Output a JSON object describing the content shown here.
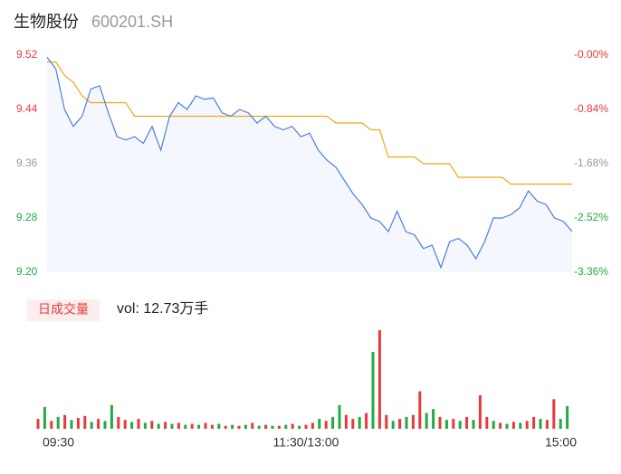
{
  "chart_data": [
    {
      "type": "line",
      "title": "生物股份",
      "subtitle": "600201.SH",
      "x": [
        0,
        4,
        8,
        12,
        16,
        20,
        24,
        28,
        32,
        36,
        40,
        44,
        48,
        52,
        56,
        60,
        64,
        68,
        72,
        76,
        80,
        84,
        88,
        92,
        96,
        100,
        104,
        108,
        112,
        116,
        120,
        124,
        128,
        132,
        136,
        140,
        144,
        148,
        152,
        156,
        160,
        164,
        168,
        172,
        176,
        180,
        184,
        188,
        192,
        196,
        200,
        204,
        208,
        212,
        216,
        220,
        224,
        228,
        232,
        236,
        240
      ],
      "xlim": [
        0,
        240
      ],
      "ylim": [
        9.2,
        9.52
      ],
      "yticks": [
        {
          "value": 9.52,
          "label": "9.52"
        },
        9.44,
        9.36,
        9.28,
        {
          "value": 9.2,
          "label": "9.20"
        }
      ],
      "ytick_colors": [
        "#e83a3a",
        "#e83a3a",
        "#999999",
        "#22aa44",
        "#22aa44"
      ],
      "y2lim": [
        -3.36,
        0
      ],
      "y2ticks": [
        {
          "value": 0,
          "label": "-0.00%"
        },
        {
          "value": -0.84,
          "label": "-0.84%"
        },
        {
          "value": -1.68,
          "label": "-1.68%"
        },
        {
          "value": -2.52,
          "label": "-2.52%"
        },
        {
          "value": -3.36,
          "label": "-3.36%"
        }
      ],
      "y2tick_colors": [
        "#e83a3a",
        "#e83a3a",
        "#999999",
        "#22aa44",
        "#22aa44"
      ],
      "series": [
        {
          "color": "#4a7fe0",
          "values": [
            9.517,
            9.5,
            9.44,
            9.415,
            9.43,
            9.47,
            9.475,
            9.435,
            9.4,
            9.395,
            9.4,
            9.39,
            9.415,
            9.38,
            9.43,
            9.45,
            9.44,
            9.46,
            9.455,
            9.457,
            9.435,
            9.43,
            9.44,
            9.435,
            9.42,
            9.43,
            9.415,
            9.41,
            9.415,
            9.4,
            9.405,
            9.38,
            9.365,
            9.355,
            9.335,
            9.315,
            9.3,
            9.28,
            9.275,
            9.26,
            9.29,
            9.26,
            9.255,
            9.235,
            9.24,
            9.207,
            9.245,
            9.25,
            9.24,
            9.22,
            9.245,
            9.28,
            9.28,
            9.285,
            9.295,
            9.32,
            9.305,
            9.3,
            9.28,
            9.275,
            9.26
          ]
        },
        {
          "color": "#f0a818",
          "values": [
            9.51,
            9.51,
            9.49,
            9.48,
            9.46,
            9.45,
            9.45,
            9.45,
            9.45,
            9.45,
            9.43,
            9.43,
            9.43,
            9.43,
            9.43,
            9.43,
            9.43,
            9.43,
            9.43,
            9.43,
            9.43,
            9.43,
            9.43,
            9.43,
            9.43,
            9.43,
            9.43,
            9.43,
            9.43,
            9.43,
            9.43,
            9.43,
            9.43,
            9.42,
            9.42,
            9.42,
            9.42,
            9.41,
            9.41,
            9.37,
            9.37,
            9.37,
            9.37,
            9.36,
            9.36,
            9.36,
            9.36,
            9.34,
            9.34,
            9.34,
            9.34,
            9.34,
            9.34,
            9.33,
            9.33,
            9.33,
            9.33,
            9.33,
            9.33,
            9.33,
            9.33
          ]
        }
      ],
      "area_color": "#f4f7fd"
    },
    {
      "type": "bar",
      "title": "日成交量",
      "subtitle": "vol: 12.73万手",
      "x": [
        0,
        3,
        6,
        9,
        12,
        15,
        18,
        21,
        24,
        27,
        30,
        33,
        36,
        39,
        42,
        45,
        48,
        51,
        54,
        57,
        60,
        63,
        66,
        69,
        72,
        75,
        78,
        81,
        84,
        87,
        90,
        93,
        96,
        99,
        102,
        105,
        108,
        111,
        114,
        117,
        120,
        123,
        126,
        129,
        132,
        135,
        138,
        141,
        144,
        147,
        150,
        153,
        156,
        159,
        162,
        165,
        168,
        171,
        174,
        177,
        180,
        183,
        186,
        189,
        192,
        195,
        198,
        201,
        204,
        207,
        210,
        213,
        216,
        219,
        222,
        225,
        228,
        231,
        234,
        237
      ],
      "xlim": [
        0,
        240
      ],
      "xticks": [
        {
          "value": 0,
          "label": "09:30"
        },
        {
          "value": 120,
          "label": "11:30/13:00"
        },
        {
          "value": 240,
          "label": "15:00"
        }
      ],
      "ylim": [
        0,
        100
      ],
      "values": [
        10,
        22,
        8,
        12,
        14,
        9,
        11,
        13,
        7,
        10,
        8,
        24,
        12,
        9,
        7,
        10,
        6,
        8,
        5,
        7,
        5,
        6,
        4,
        5,
        4,
        6,
        4,
        5,
        3,
        4,
        3,
        4,
        6,
        3,
        4,
        3,
        3,
        4,
        5,
        3,
        4,
        6,
        10,
        8,
        12,
        24,
        14,
        10,
        12,
        16,
        78,
        100,
        14,
        8,
        10,
        12,
        14,
        38,
        16,
        20,
        12,
        9,
        10,
        8,
        12,
        9,
        34,
        12,
        8,
        6,
        5,
        7,
        6,
        8,
        12,
        10,
        9,
        30,
        10,
        23
      ],
      "colors": [
        "#e83a3a",
        "#22aa44",
        "#e83a3a",
        "#22aa44",
        "#e83a3a",
        "#22aa44",
        "#e83a3a",
        "#e83a3a",
        "#22aa44",
        "#e83a3a",
        "#22aa44",
        "#22aa44",
        "#e83a3a",
        "#e83a3a",
        "#22aa44",
        "#e83a3a",
        "#22aa44",
        "#e83a3a",
        "#22aa44",
        "#e83a3a",
        "#22aa44",
        "#e83a3a",
        "#22aa44",
        "#e83a3a",
        "#22aa44",
        "#e83a3a",
        "#e83a3a",
        "#22aa44",
        "#e83a3a",
        "#22aa44",
        "#e83a3a",
        "#22aa44",
        "#e83a3a",
        "#22aa44",
        "#e83a3a",
        "#22aa44",
        "#e83a3a",
        "#22aa44",
        "#e83a3a",
        "#22aa44",
        "#e83a3a",
        "#e83a3a",
        "#22aa44",
        "#e83a3a",
        "#22aa44",
        "#22aa44",
        "#e83a3a",
        "#e83a3a",
        "#22aa44",
        "#e83a3a",
        "#22aa44",
        "#e83a3a",
        "#e83a3a",
        "#22aa44",
        "#e83a3a",
        "#22aa44",
        "#e83a3a",
        "#e83a3a",
        "#22aa44",
        "#22aa44",
        "#e83a3a",
        "#22aa44",
        "#e83a3a",
        "#22aa44",
        "#e83a3a",
        "#22aa44",
        "#e83a3a",
        "#e83a3a",
        "#22aa44",
        "#e83a3a",
        "#22aa44",
        "#e83a3a",
        "#22aa44",
        "#e83a3a",
        "#e83a3a",
        "#22aa44",
        "#e83a3a",
        "#e83a3a",
        "#22aa44",
        "#22aa44"
      ]
    }
  ]
}
